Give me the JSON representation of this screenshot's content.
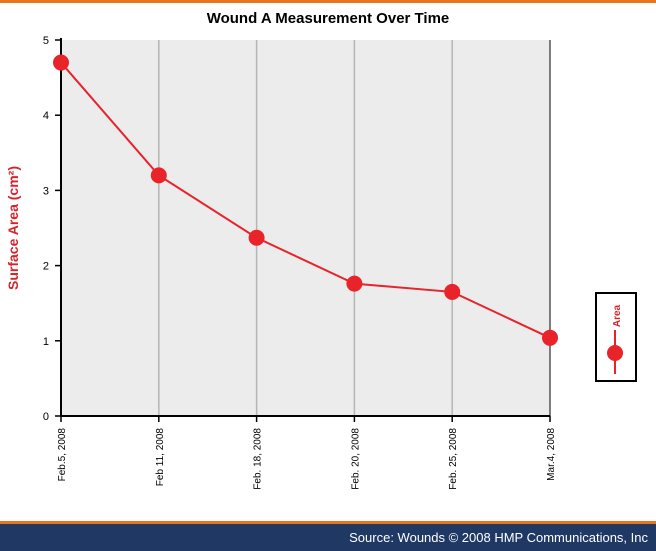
{
  "chart_data": {
    "type": "line",
    "title": "Wound A Measurement Over Time",
    "ylabel": "Surface Area (cm²)",
    "xlabel": "",
    "categories": [
      "Feb.5, 2008",
      "Feb 11, 2008",
      "Feb. 18, 2008",
      "Feb. 20, 2008",
      "Feb. 25, 2008",
      "Mar.4, 2008"
    ],
    "series": [
      {
        "name": "Area",
        "values": [
          4.7,
          3.2,
          2.37,
          1.76,
          1.65,
          1.04
        ],
        "color": "#e8232a"
      }
    ],
    "ylim": [
      0,
      5
    ],
    "yticks": [
      0,
      1,
      2,
      3,
      4,
      5
    ],
    "grid": "vertical",
    "legend": "right"
  },
  "footer": {
    "source": "Source: Wounds © 2008 HMP Communications, Inc"
  },
  "colors": {
    "plot_bg": "#ececec",
    "line": "#e8232a",
    "footer_bg": "#1f3864",
    "accent": "#e8741e",
    "label": "#d9232a"
  }
}
